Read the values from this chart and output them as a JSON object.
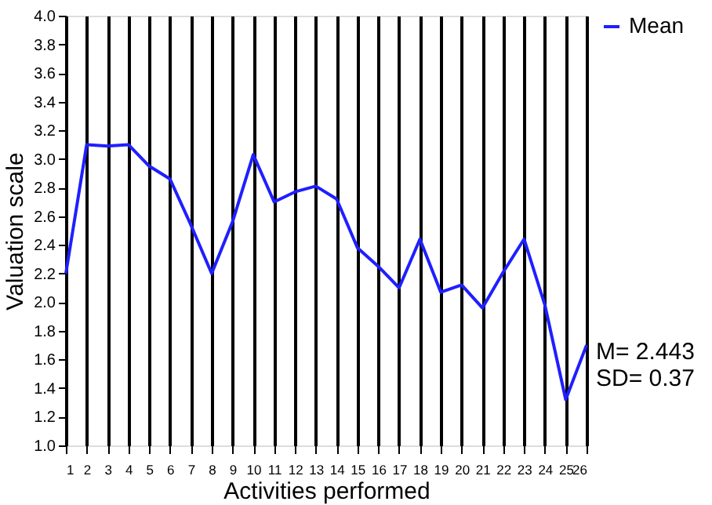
{
  "chart_data": {
    "type": "line",
    "xlabel": "Activities performed",
    "ylabel": "Valuation scale",
    "x": [
      1,
      2,
      3,
      4,
      5,
      6,
      7,
      8,
      9,
      10,
      11,
      12,
      13,
      14,
      15,
      16,
      17,
      18,
      19,
      20,
      21,
      22,
      23,
      24,
      25,
      26
    ],
    "series": [
      {
        "name": "Mean",
        "color": "#1f1fff",
        "values": [
          2.2,
          3.1,
          3.09,
          3.1,
          2.95,
          2.86,
          2.54,
          2.2,
          2.56,
          3.03,
          2.7,
          2.77,
          2.81,
          2.72,
          2.38,
          2.25,
          2.1,
          2.44,
          2.07,
          2.12,
          1.96,
          2.21,
          2.44,
          1.98,
          1.32,
          1.7
        ]
      }
    ],
    "xlim": [
      1,
      26
    ],
    "xticks": [
      1,
      2,
      3,
      4,
      5,
      6,
      7,
      8,
      9,
      10,
      11,
      12,
      13,
      14,
      15,
      16,
      17,
      18,
      19,
      20,
      21,
      22,
      23,
      24,
      25,
      26
    ],
    "ylim": [
      1.0,
      4.0
    ],
    "yticks": [
      {
        "value": 1.0,
        "label": "1.0"
      },
      {
        "value": 1.2,
        "label": "1.2"
      },
      {
        "value": 1.4,
        "label": "1.4"
      },
      {
        "value": 1.6,
        "label": "1.6"
      },
      {
        "value": 1.8,
        "label": "1.8"
      },
      {
        "value": 2.0,
        "label": "2.0"
      },
      {
        "value": 2.2,
        "label": "2.2"
      },
      {
        "value": 2.4,
        "label": "2.4"
      },
      {
        "value": 2.6,
        "label": "2.6"
      },
      {
        "value": 2.8,
        "label": "2.8"
      },
      {
        "value": 3.0,
        "label": "3.0"
      },
      {
        "value": 3.2,
        "label": "3.2"
      },
      {
        "value": 3.4,
        "label": "3.4"
      },
      {
        "value": 3.6,
        "label": "3.6"
      },
      {
        "value": 3.8,
        "label": "3.8"
      },
      {
        "value": 4.0,
        "label": "4.0"
      }
    ],
    "grid": "x",
    "legend": "right",
    "marker": "none",
    "line_style": "solid",
    "annotations": [
      "M= 2.443",
      "SD= 0.37"
    ]
  }
}
